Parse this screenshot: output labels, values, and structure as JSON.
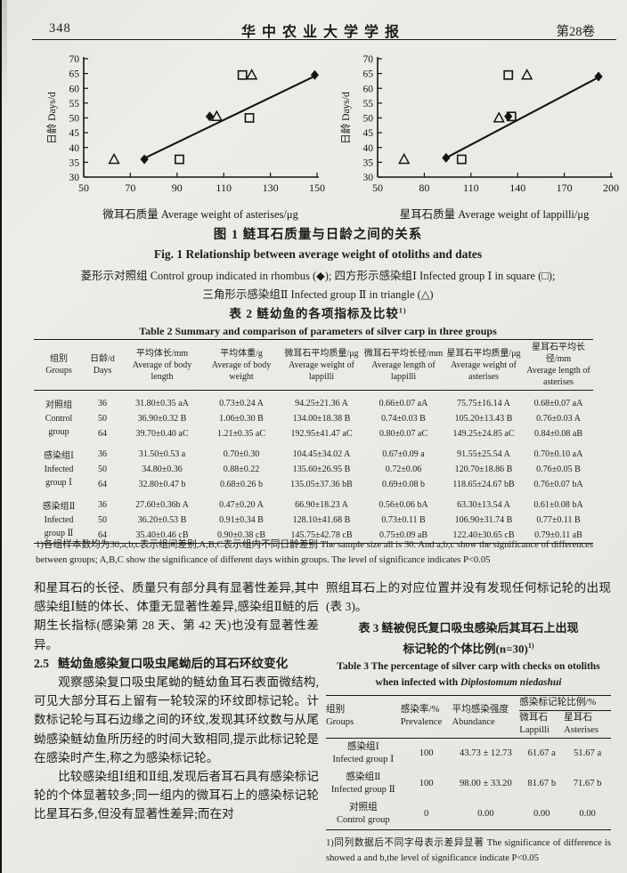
{
  "header": {
    "page_number": "348",
    "journal_title": "华中农业大学学报",
    "volume": "第28卷"
  },
  "chart_data": [
    {
      "type": "scatter",
      "ylabel": "日龄 Days/d",
      "xlabel": "微耳石质量 Average weight of asterises/μg",
      "xlim": [
        50,
        150
      ],
      "xticks": [
        50,
        70,
        90,
        110,
        130,
        150
      ],
      "ylim": [
        30,
        70
      ],
      "yticks": [
        30,
        35,
        40,
        45,
        50,
        55,
        60,
        65,
        70
      ],
      "series": [
        {
          "name": "Control group",
          "marker": "diamond-filled",
          "points": [
            [
              76,
              36
            ],
            [
              104,
              50.5
            ],
            [
              149,
              64.5
            ]
          ]
        },
        {
          "name": "Infected group I",
          "marker": "square-open",
          "points": [
            [
              91,
              36
            ],
            [
              121,
              50
            ],
            [
              118,
              64.5
            ]
          ]
        },
        {
          "name": "Infected group II",
          "marker": "triangle-open",
          "points": [
            [
              63,
              36
            ],
            [
              107,
              50.5
            ],
            [
              122,
              64.5
            ]
          ]
        }
      ],
      "trendline": [
        [
          75,
          36
        ],
        [
          150,
          64.5
        ]
      ],
      "legend_position": "none",
      "grid": false
    },
    {
      "type": "scatter",
      "ylabel": "日龄 Days/d",
      "xlabel": "星耳石质量 Average weight of lappilli/μg",
      "xlim": [
        50,
        200
      ],
      "xticks": [
        50,
        80,
        110,
        140,
        170,
        200
      ],
      "ylim": [
        30,
        70
      ],
      "yticks": [
        30,
        35,
        40,
        45,
        50,
        55,
        60,
        65,
        70
      ],
      "series": [
        {
          "name": "Control group",
          "marker": "diamond-filled",
          "points": [
            [
              94,
              36.5
            ],
            [
              134,
              50.5
            ],
            [
              192,
              64
            ]
          ]
        },
        {
          "name": "Infected group I",
          "marker": "square-open",
          "points": [
            [
              104,
              36
            ],
            [
              136,
              50.5
            ],
            [
              134,
              64.5
            ]
          ]
        },
        {
          "name": "Infected group II",
          "marker": "triangle-open",
          "points": [
            [
              67,
              36
            ],
            [
              128,
              50
            ],
            [
              146,
              64.5
            ]
          ]
        }
      ],
      "trendline": [
        [
          94,
          36.5
        ],
        [
          193,
          64
        ]
      ],
      "legend_position": "none",
      "grid": false
    }
  ],
  "figure1": {
    "caption_zh": "图 1  鲢耳石质量与日龄之间的关系",
    "caption_en": "Fig. 1   Relationship between average weight of otoliths and dates",
    "legend_line1": "菱形示对照组 Control group indicated in rhombus (◆); 四方形示感染组Ⅰ Infected group Ⅰ in square (□);",
    "legend_line2": "三角形示感染组Ⅱ Infected group Ⅱ in triangle (△)"
  },
  "table2": {
    "title_zh": "表 2  鲢幼鱼的各项指标及比较",
    "title_sup": "1)",
    "title_en": "Table 2   Summary and comparison of parameters of silver carp in three groups",
    "headers": [
      {
        "zh": "组别",
        "en": "Groups"
      },
      {
        "zh": "日龄/d",
        "en": "Days"
      },
      {
        "zh": "平均体长/mm",
        "en": "Average of body length"
      },
      {
        "zh": "平均体重/g",
        "en": "Average of body weight"
      },
      {
        "zh": "微耳石平均质量/μg",
        "en": "Average weight of lappilli"
      },
      {
        "zh": "微耳石平均长径/mm",
        "en": "Average length of lappilli"
      },
      {
        "zh": "星耳石平均质量/μg",
        "en": "Average weight of asterises"
      },
      {
        "zh": "星耳石平均长径/mm",
        "en": "Average length of asterises"
      }
    ],
    "groups": [
      {
        "label_zh": "对照组",
        "label_en1": "Control",
        "label_en2": "group",
        "rows": [
          {
            "day": "36",
            "cols": [
              "31.80±0.35 aA",
              "0.73±0.24 A",
              "94.25±21.36 A",
              "0.66±0.07 aA",
              "75.75±16.14 A",
              "0.68±0.07 aA"
            ]
          },
          {
            "day": "50",
            "cols": [
              "36.90±0.32 B",
              "1.06±0.30 B",
              "134.00±18.38 B",
              "0.74±0.03 B",
              "105.20±13.43 B",
              "0.76±0.03 A"
            ]
          },
          {
            "day": "64",
            "cols": [
              "39.70±0.40 aC",
              "1.21±0.35 aC",
              "192.95±41.47 aC",
              "0.80±0.07 aC",
              "149.25±24.85 aC",
              "0.84±0.08 aB"
            ]
          }
        ]
      },
      {
        "label_zh": "感染组Ⅰ",
        "label_en1": "Infected",
        "label_en2": "group Ⅰ",
        "rows": [
          {
            "day": "36",
            "cols": [
              "31.50±0.53 a",
              "0.70±0.30",
              "104.45±34.02 A",
              "0.67±0.09 a",
              "91.55±25.54 A",
              "0.70±0.10 aA"
            ]
          },
          {
            "day": "50",
            "cols": [
              "34.80±0.36",
              "0.88±0.22",
              "135.60±26.95 B",
              "0.72±0.06",
              "120.70±18.86 B",
              "0.76±0.05 B"
            ]
          },
          {
            "day": "64",
            "cols": [
              "32.80±0.47 b",
              "0.68±0.26 b",
              "135.05±37.36 bB",
              "0.69±0.08 b",
              "118.65±24.67 bB",
              "0.76±0.07 bA"
            ]
          }
        ]
      },
      {
        "label_zh": "感染组Ⅱ",
        "label_en1": "Infected",
        "label_en2": "group Ⅱ",
        "rows": [
          {
            "day": "36",
            "cols": [
              "27.60±0.36b A",
              "0.47±0.20 A",
              "66.90±18.23 A",
              "0.56±0.06 bA",
              "63.30±13.54 A",
              "0.61±0.08 bA"
            ]
          },
          {
            "day": "50",
            "cols": [
              "36.20±0.53 B",
              "0.91±0.34 B",
              "128.10±41.68 B",
              "0.73±0.11 B",
              "106.90±31.74 B",
              "0.77±0.11 B"
            ]
          },
          {
            "day": "64",
            "cols": [
              "35.40±0.46 cB",
              "0.90±0.38 cB",
              "145.75±42.78 cB",
              "0.75±0.09 aB",
              "122.40±30.65 cB",
              "0.79±0.11 aB"
            ]
          }
        ]
      }
    ],
    "footnote": "1)各组样本数均为30,a,b,c表示组间差别,A,B,C表示组内不同日龄差别 The sample size all is 30. And a,b,c show the significance of differences between groups; A,B,C show the significance of different days within groups. The level of significance indicates P<0.05"
  },
  "body_text": {
    "left_para1": "和星耳石的长径、质量只有部分具有显著性差异,其中感染组Ⅰ鲢的体长、体重无显著性差异,感染组Ⅱ鲢的后期生长指标(感染第 28 天、第 42 天)也没有显著性差异。",
    "heading_25_num": "2.5",
    "heading_25": "鲢幼鱼感染复口吸虫尾蚴后的耳石环纹变化",
    "left_para2": "观察感染复口吸虫尾蚴的鲢幼鱼耳石表面微结构,可见大部分耳石上留有一轮较深的环纹即标记轮。计数标记轮与耳石边缘之间的环纹,发现其环纹数与从尾蚴感染鲢幼鱼所历经的时间大致相同,提示此标记轮是在感染时产生,称之为感染标记轮。",
    "left_para3": "比较感染组Ⅰ组和Ⅱ组,发现后者耳石具有感染标记轮的个体显著较多;同一组内的微耳石上的感染标记轮比星耳石多,但没有显著性差异;而在对",
    "right_para1": "照组耳石上的对应位置并没有发现任何标记轮的出现(表 3)。"
  },
  "table3": {
    "title_zh_line1": "表 3  鲢被倪氏复口吸虫感染后其耳石上出现",
    "title_zh_line2": "标记轮的个体比例(n=30)",
    "title_sup": "1)",
    "title_en_line1": "Table 3   The percentage of silver carp with checks on otoliths",
    "title_en_prefix": "when infected with ",
    "species": "Diplostomum niedashui",
    "headers": {
      "groups_zh": "组别",
      "groups_en": "Groups",
      "prevalence_zh": "感染率/%",
      "prevalence_en": "Prevalence",
      "abundance_zh": "平均感染强度",
      "abundance_en": "Abundance",
      "checks_group": "感染标记轮比例/%",
      "lappilli_zh": "微耳石",
      "lappilli_en": "Lappilli",
      "asterises_zh": "星耳石",
      "asterises_en": "Asterises"
    },
    "rows": [
      {
        "zh": "感染组Ⅰ",
        "en": "Infected group Ⅰ",
        "prevalence": "100",
        "abundance": "43.73 ± 12.73",
        "lappilli": "61.67 a",
        "asterises": "51.67 a"
      },
      {
        "zh": "感染组Ⅱ",
        "en": "Infected group Ⅱ",
        "prevalence": "100",
        "abundance": "98.00 ± 33.20",
        "lappilli": "81.67 b",
        "asterises": "71.67 b"
      },
      {
        "zh": "对照组",
        "en": "Control group",
        "prevalence": "0",
        "abundance": "0.00",
        "lappilli": "0.00",
        "asterises": "0.00"
      }
    ],
    "footnote": "1)同列数据后不同字母表示差异显著 The significance of difference is showed a and b,the level of significance indicate P<0.05"
  }
}
